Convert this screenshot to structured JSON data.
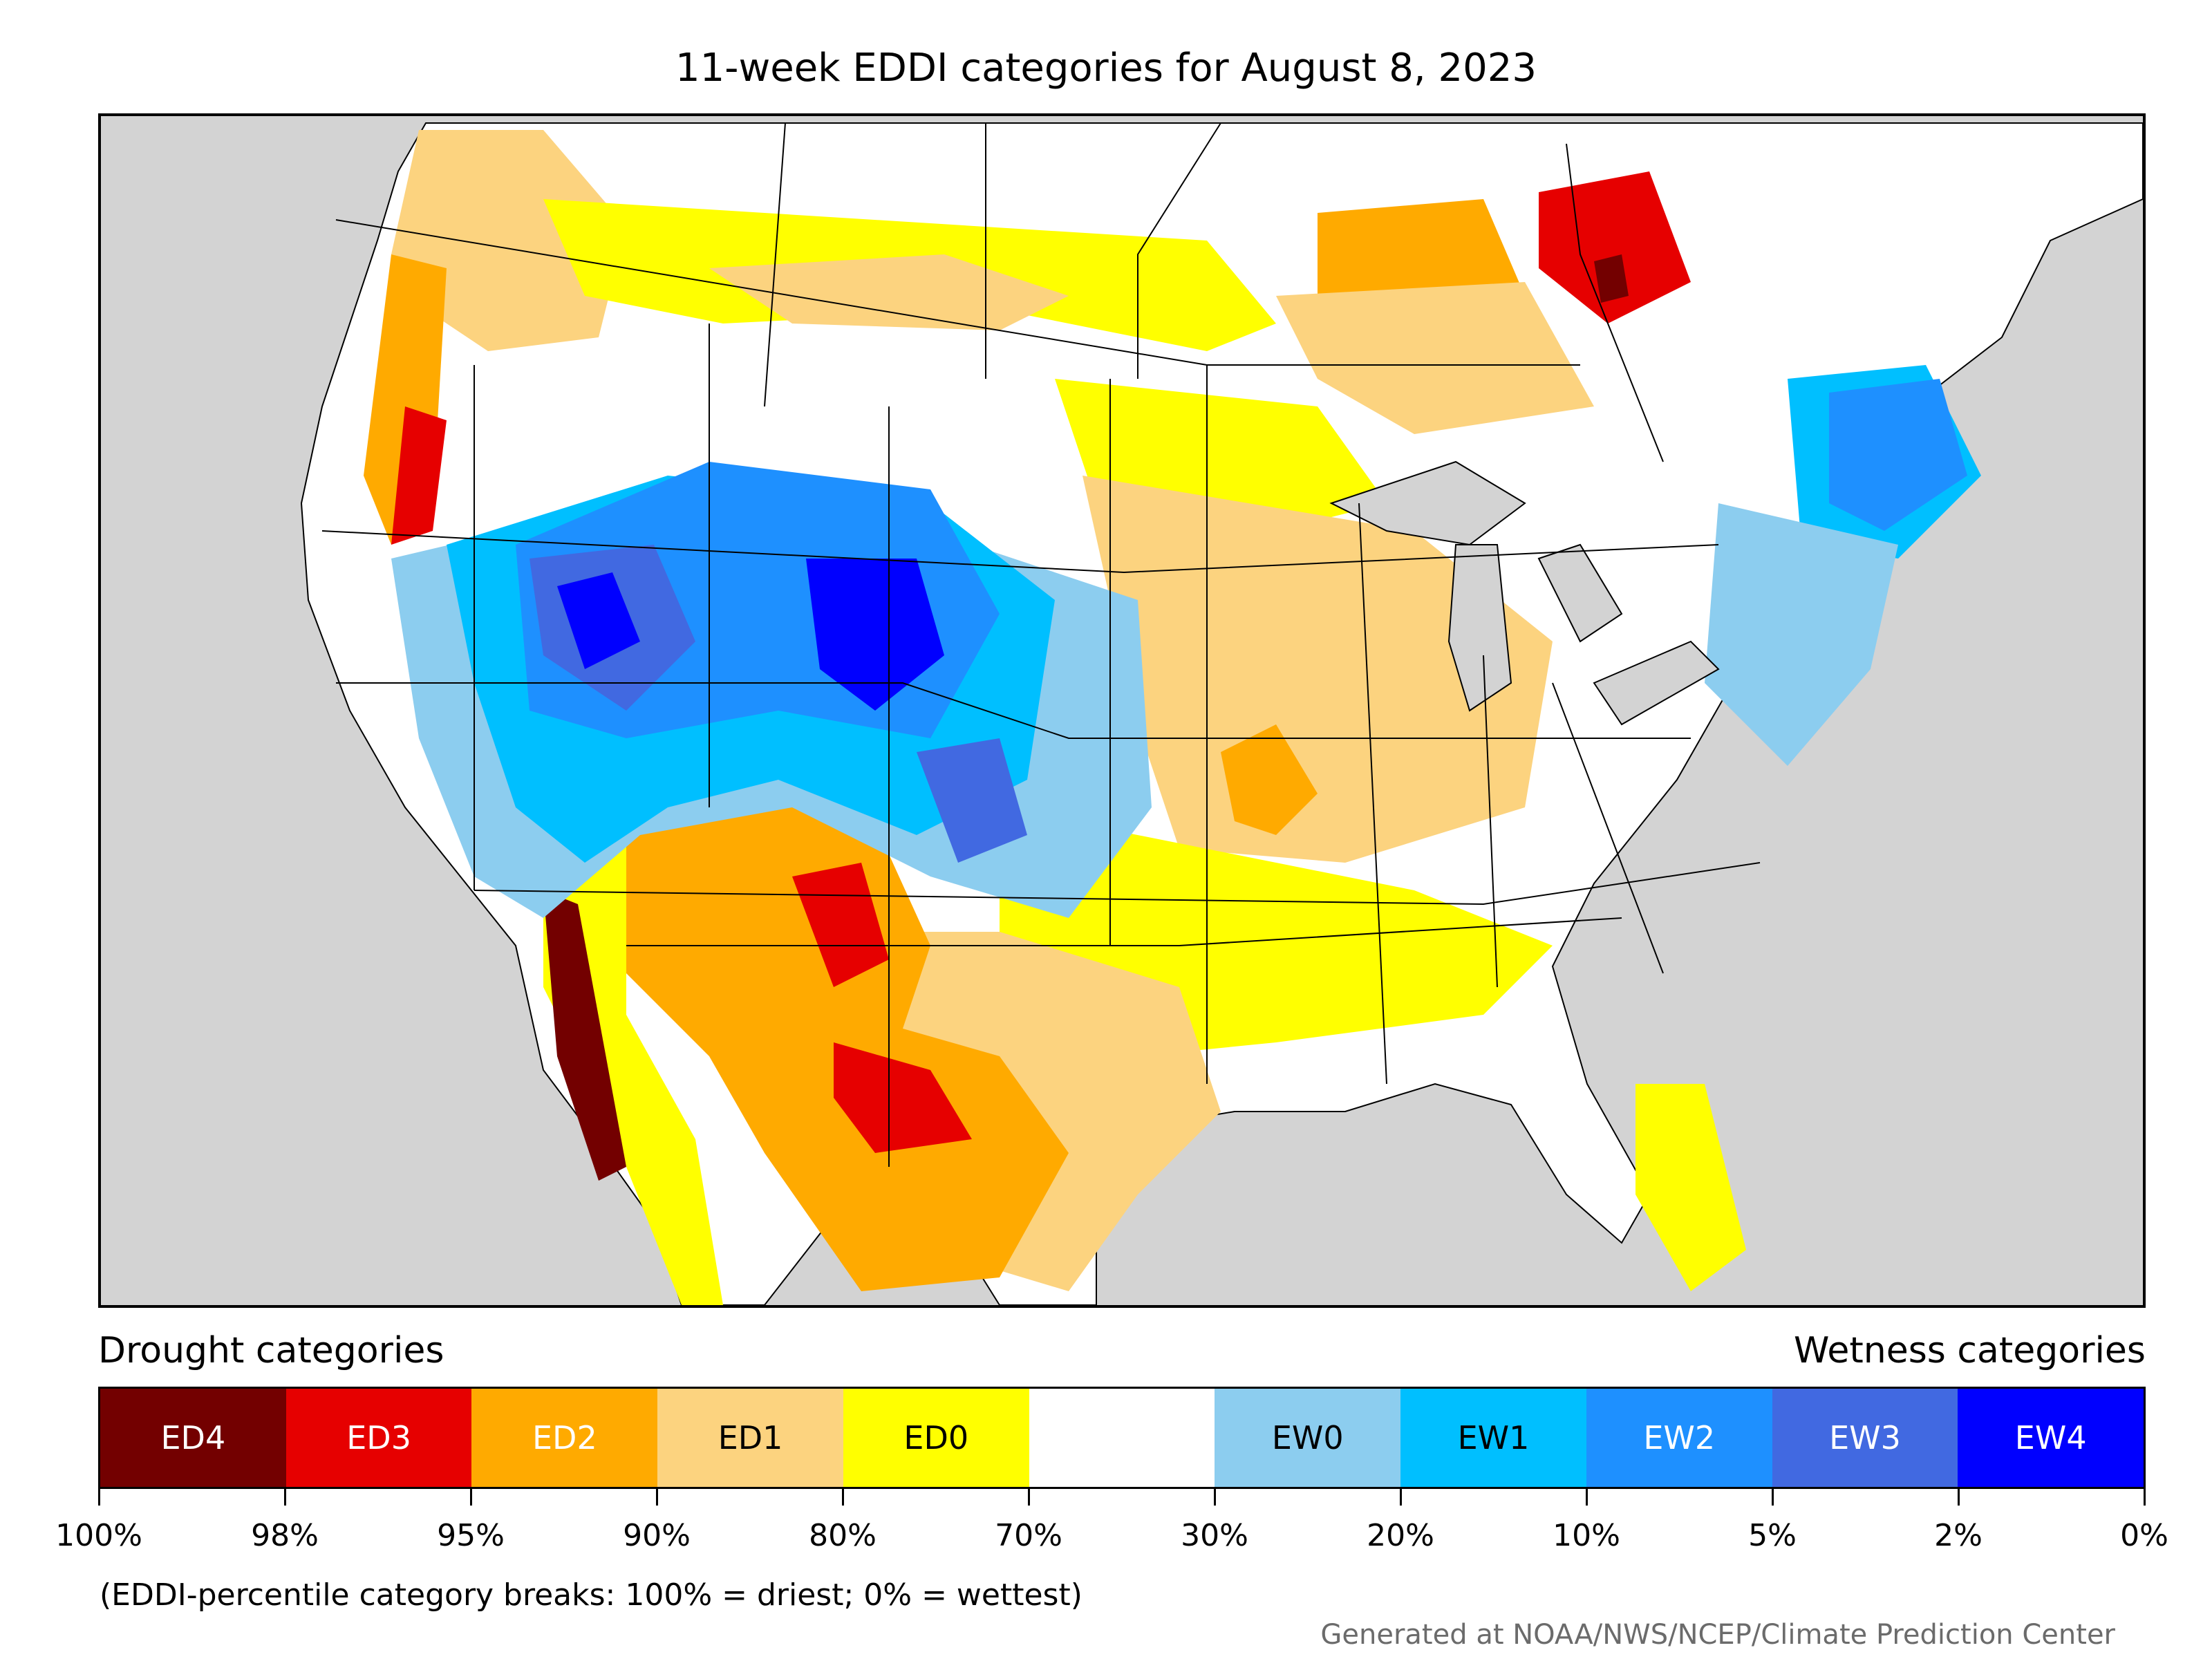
{
  "title": "11-week EDDI categories for August 8, 2023",
  "legend": {
    "drought_heading": "Drought categories",
    "wetness_heading": "Wetness categories",
    "categories": [
      {
        "label": "ED4",
        "color": "#730000",
        "text_color": "#ffffff"
      },
      {
        "label": "ED3",
        "color": "#e60000",
        "text_color": "#ffffff"
      },
      {
        "label": "ED2",
        "color": "#ffaa00",
        "text_color": "#ffffff"
      },
      {
        "label": "ED1",
        "color": "#fcd37f",
        "text_color": "#000000"
      },
      {
        "label": "ED0",
        "color": "#ffff00",
        "text_color": "#000000"
      },
      {
        "label": "",
        "color": "#ffffff",
        "text_color": "#000000"
      },
      {
        "label": "EW0",
        "color": "#8ccdef",
        "text_color": "#000000"
      },
      {
        "label": "EW1",
        "color": "#00bfff",
        "text_color": "#000000"
      },
      {
        "label": "EW2",
        "color": "#1e90ff",
        "text_color": "#ffffff"
      },
      {
        "label": "EW3",
        "color": "#4169e1",
        "text_color": "#ffffff"
      },
      {
        "label": "EW4",
        "color": "#0000ff",
        "text_color": "#ffffff"
      }
    ],
    "breaks": [
      "100%",
      "98%",
      "95%",
      "90%",
      "80%",
      "70%",
      "30%",
      "20%",
      "10%",
      "5%",
      "2%",
      "0%"
    ]
  },
  "note": "(EDDI-percentile category breaks: 100% = driest; 0% = wettest)",
  "credit": "Generated at NOAA/NWS/NCEP/Climate Prediction Center",
  "map": {
    "background_color": "#d3d3d3",
    "land_color": "#ffffff",
    "border_color": "#000000"
  }
}
